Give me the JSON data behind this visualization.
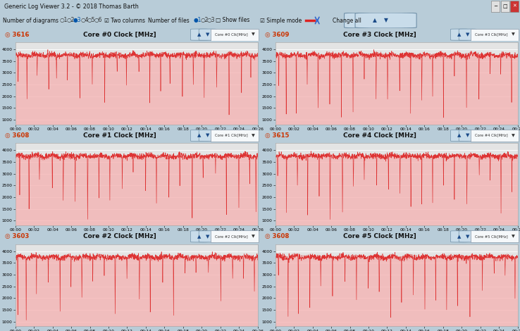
{
  "title_bar": "Generic Log Viewer 3.2 - © 2018 Thomas Barth",
  "panels": [
    {
      "sig_idx": 0,
      "max_val": "3616",
      "title": "Core #0 Clock [MHz]",
      "dropdown": "Core #0 Clock [MHz]"
    },
    {
      "sig_idx": 1,
      "max_val": "3609",
      "title": "Core #3 Clock [MHz]",
      "dropdown": "Core #3 Clock [MHz]"
    },
    {
      "sig_idx": 2,
      "max_val": "3608",
      "title": "Core #1 Clock [MHz]",
      "dropdown": "Core #1 Clock [MHz]"
    },
    {
      "sig_idx": 3,
      "max_val": "3615",
      "title": "Core #4 Clock [MHz]",
      "dropdown": "Core #4 Clock [MHz]"
    },
    {
      "sig_idx": 4,
      "max_val": "3603",
      "title": "Core #2 Clock [MHz]",
      "dropdown": "Core #2 Clock [MHz]"
    },
    {
      "sig_idx": 5,
      "max_val": "3608",
      "title": "Core #5 Clock [MHz]",
      "dropdown": "Core #5 Clock [MHz]"
    }
  ],
  "ylim": [
    800,
    4300
  ],
  "yticks": [
    1000,
    1500,
    2000,
    2500,
    3000,
    3500,
    4000
  ],
  "plot_bg": "#e4e4e4",
  "line_color": "#dd2222",
  "fill_color": "#f5b0b0",
  "window_bg": "#b8ccd8",
  "panel_bg": "#e8eef2",
  "title_bar_bg": "#9ab0c0",
  "toolbar_bg": "#dce8f2",
  "grid_color": "#ffffff",
  "n_points": 1560,
  "base_freq": 3750,
  "drop_positions_0": [
    18,
    75,
    140,
    215,
    265,
    335,
    415,
    495,
    575,
    655,
    715,
    795,
    865,
    935,
    995,
    1075,
    1145,
    1215,
    1295,
    1375,
    1455,
    1515
  ],
  "drop_positions_1": [
    22,
    70,
    135,
    205,
    275,
    350,
    425,
    500,
    572,
    648,
    722,
    800,
    870,
    942,
    1012,
    1082,
    1152,
    1230,
    1310,
    1382,
    1450,
    1520
  ],
  "drop_positions_2": [
    28,
    88,
    155,
    238,
    308,
    385,
    465,
    538,
    608,
    688,
    758,
    838,
    908,
    988,
    1058,
    1138,
    1208,
    1288,
    1358,
    1438,
    1508,
    1548
  ],
  "drop_positions_3": [
    15,
    72,
    142,
    208,
    282,
    352,
    432,
    502,
    572,
    652,
    728,
    802,
    872,
    942,
    1012,
    1082,
    1152,
    1232,
    1312,
    1382,
    1452,
    1522
  ],
  "drop_positions_4": [
    16,
    70,
    136,
    212,
    288,
    358,
    428,
    498,
    572,
    642,
    718,
    798,
    868,
    948,
    1018,
    1092,
    1162,
    1242,
    1322,
    1398,
    1468,
    1538
  ],
  "drop_positions_5": [
    20,
    82,
    148,
    222,
    292,
    368,
    448,
    522,
    598,
    668,
    742,
    812,
    888,
    962,
    1032,
    1102,
    1172,
    1252,
    1332,
    1408,
    1478,
    1542
  ]
}
